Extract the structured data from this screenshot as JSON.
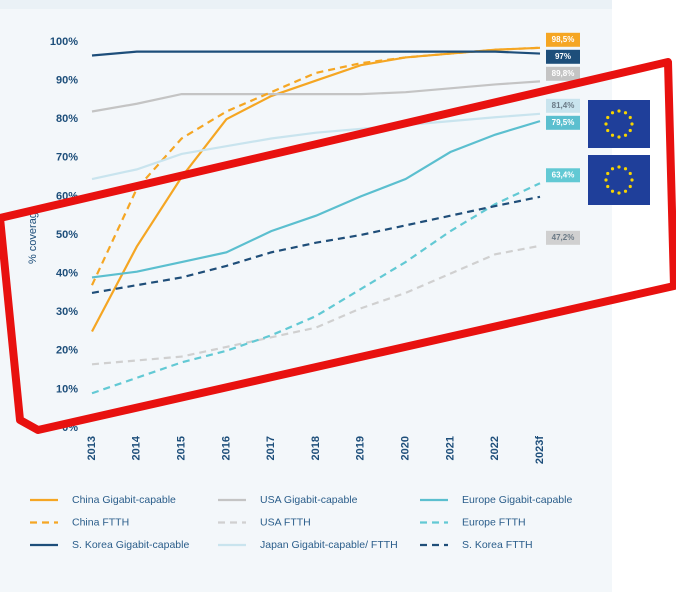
{
  "chart_data": {
    "type": "line",
    "y_label": "% coverage",
    "categories": [
      "2013",
      "2014",
      "2015",
      "2016",
      "2017",
      "2018",
      "2019",
      "2020",
      "2021",
      "2022",
      "2023f"
    ],
    "ylim": [
      0,
      100
    ],
    "yticks": [
      {
        "value": 0,
        "label": "0%"
      },
      {
        "value": 10,
        "label": "10%"
      },
      {
        "value": 20,
        "label": "20%"
      },
      {
        "value": 30,
        "label": "30%"
      },
      {
        "value": 40,
        "label": "40%"
      },
      {
        "value": 50,
        "label": "50%"
      },
      {
        "value": 60,
        "label": "60%"
      },
      {
        "value": 70,
        "label": "70%"
      },
      {
        "value": 80,
        "label": "80%"
      },
      {
        "value": 90,
        "label": "90%"
      },
      {
        "value": 100,
        "label": "100%"
      }
    ],
    "series": [
      {
        "name": "China Gigabit-capable",
        "color": "#f5a623",
        "dashed": false,
        "values": [
          25,
          47,
          65,
          80,
          86,
          90,
          94,
          96,
          97,
          98,
          98.5
        ],
        "value_labels": [
          null,
          null,
          null,
          null,
          null,
          null,
          null,
          null,
          null,
          null,
          "98,5%"
        ]
      },
      {
        "name": "USA Gigabit-capable",
        "color": "#c4c4c4",
        "dashed": false,
        "values": [
          82,
          84,
          86.5,
          86.5,
          86.5,
          86.5,
          86.5,
          87,
          88,
          89,
          89.8
        ],
        "value_labels": [
          null,
          null,
          null,
          null,
          null,
          null,
          null,
          null,
          null,
          null,
          "89,8%"
        ]
      },
      {
        "name": "Europe Gigabit-capable",
        "color": "#5bbfcf",
        "dashed": false,
        "values": [
          39,
          40.5,
          43,
          45.5,
          51,
          55,
          60,
          64.5,
          71.5,
          76,
          79.5
        ],
        "value_labels": [
          null,
          null,
          null,
          null,
          null,
          null,
          null,
          null,
          null,
          null,
          "79,5%"
        ]
      },
      {
        "name": "China FTTH",
        "color": "#f5a623",
        "dashed": true,
        "values": [
          37,
          62,
          75,
          82,
          87,
          92,
          94.5,
          96,
          97,
          98,
          98.5
        ]
      },
      {
        "name": "USA FTTH",
        "color": "#d0d0d0",
        "dashed": true,
        "values": [
          16.5,
          17.5,
          18.5,
          21,
          23.5,
          26,
          31,
          35,
          40,
          45,
          47.2
        ],
        "value_labels": [
          null,
          null,
          null,
          null,
          null,
          null,
          null,
          null,
          null,
          null,
          "47,2%"
        ]
      },
      {
        "name": "Europe FTTH",
        "color": "#62c9d4",
        "dashed": true,
        "values": [
          9,
          13,
          17,
          20,
          24,
          29,
          36,
          43,
          51,
          58,
          63.4
        ],
        "value_labels": [
          null,
          null,
          null,
          null,
          null,
          null,
          null,
          null,
          null,
          null,
          "63,4%"
        ]
      },
      {
        "name": "S. Korea Gigabit-capable",
        "color": "#1d4e7a",
        "dashed": false,
        "values": [
          96.5,
          97.5,
          97.5,
          97.5,
          97.5,
          97.5,
          97.5,
          97.5,
          97.5,
          97.5,
          97
        ],
        "value_labels": [
          null,
          null,
          null,
          null,
          null,
          null,
          null,
          null,
          null,
          null,
          "97%"
        ]
      },
      {
        "name": "Japan Gigabit-capable/ FTTH",
        "color": "#c9e4ee",
        "dashed": false,
        "values": [
          64.5,
          67,
          71,
          73,
          75,
          76.5,
          77.5,
          78.5,
          79.5,
          80.5,
          81.4
        ],
        "value_labels": [
          null,
          null,
          null,
          null,
          null,
          null,
          null,
          null,
          null,
          null,
          "81,4%"
        ]
      },
      {
        "name": "S. Korea FTTH",
        "color": "#1f4e79",
        "dashed": true,
        "values": [
          35,
          37,
          39,
          42,
          45.5,
          48,
          50,
          52.5,
          55,
          57.5,
          59.9
        ]
      }
    ]
  }
}
